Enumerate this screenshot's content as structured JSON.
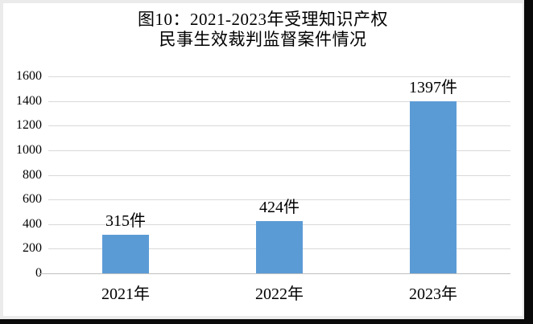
{
  "title": {
    "line1": "图10：2021-2023年受理知识产权",
    "line2": "民事生效裁判监督案件情况"
  },
  "chart_data": {
    "type": "bar",
    "title": "图10：2021-2023年受理知识产权民事生效裁判监督案件情况",
    "title_lines": [
      "图10：2021-2023年受理知识产权",
      "民事生效裁判监督案件情况"
    ],
    "categories": [
      "2021年",
      "2022年",
      "2023年"
    ],
    "values": [
      315,
      424,
      1397
    ],
    "data_labels": [
      "315件",
      "424件",
      "1397件"
    ],
    "unit": "件",
    "xlabel": "",
    "ylabel": "",
    "ylim": [
      0,
      1600
    ],
    "yticks": [
      0,
      200,
      400,
      600,
      800,
      1000,
      1200,
      1400,
      1600
    ],
    "grid": true,
    "legend": false,
    "bar_color": "#5B9BD5",
    "grid_color": "#D9D9D9",
    "axis_color": "#BFBFBF",
    "text_color": "#000000",
    "background": "#FFFFFF",
    "frame_color": "#EBEBEB",
    "outer_background": "#0A0A0A"
  }
}
